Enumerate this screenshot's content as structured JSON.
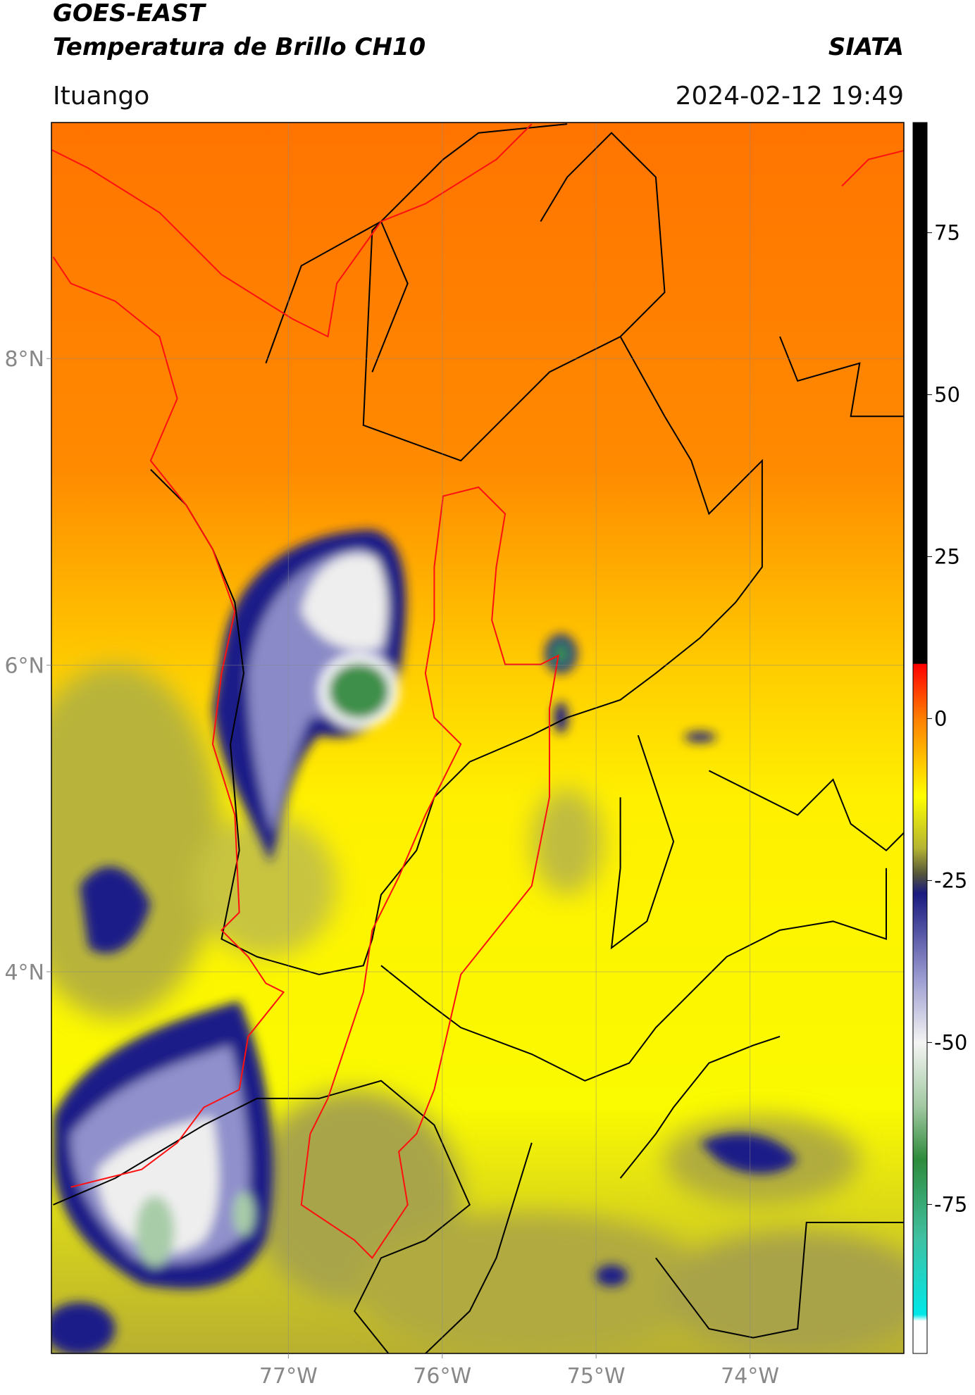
{
  "chart_data": {
    "type": "map",
    "title": "GOES-EAST",
    "subtitle": "Temperatura de Brillo CH10",
    "source": "SIATA",
    "location": "Ituango",
    "datetime": "2024-02-12 19:49",
    "xlim": [
      -78.54,
      -73.0
    ],
    "ylim": [
      1.51,
      9.54
    ],
    "xticks": [
      {
        "value": -77,
        "label": "77°W"
      },
      {
        "value": -76,
        "label": "76°W"
      },
      {
        "value": -75,
        "label": "75°W"
      },
      {
        "value": -74,
        "label": "74°W"
      }
    ],
    "yticks": [
      {
        "value": 4,
        "label": "4°N"
      },
      {
        "value": 6,
        "label": "6°N"
      },
      {
        "value": 8,
        "label": "8°N"
      }
    ],
    "grid": true,
    "clim": [
      -98,
      92
    ],
    "cticks": [
      -75,
      -50,
      -25,
      0,
      25,
      50,
      75
    ],
    "colormap": [
      {
        "value": 92,
        "color": "#000000"
      },
      {
        "value": 8.5,
        "color": "#000000"
      },
      {
        "value": 8.4,
        "color": "#ff0000"
      },
      {
        "value": 0,
        "color": "#ff7f00"
      },
      {
        "value": -12,
        "color": "#ffff00"
      },
      {
        "value": -20,
        "color": "#b4b432"
      },
      {
        "value": -24,
        "color": "#55553a"
      },
      {
        "value": -27,
        "color": "#1a1a80"
      },
      {
        "value": -40,
        "color": "#9a9ad0"
      },
      {
        "value": -50,
        "color": "#f4f4f4"
      },
      {
        "value": -60,
        "color": "#a0c8a0"
      },
      {
        "value": -68,
        "color": "#2e8b3c"
      },
      {
        "value": -80,
        "color": "#40c0a0"
      },
      {
        "value": -92,
        "color": "#00e8e8"
      },
      {
        "value": -93,
        "color": "#ffffff"
      },
      {
        "value": -98,
        "color": "#ffffff"
      }
    ]
  }
}
